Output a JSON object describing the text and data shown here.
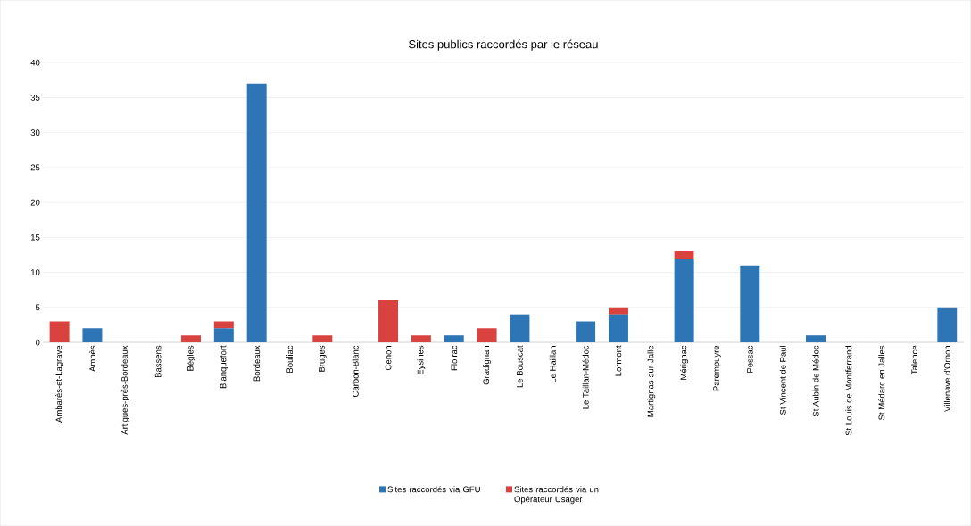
{
  "chart_data": {
    "type": "bar",
    "title": "Sites publics raccordés par le réseau",
    "categories": [
      "Ambarès-et-Lagrave",
      "Ambès",
      "Artigues-près-Bordeaux",
      "Bassens",
      "Bègles",
      "Blanquefort",
      "Bordeaux",
      "Bouliac",
      "Bruges",
      "Carbon-Blanc",
      "Cenon",
      "Eysines",
      "Floirac",
      "Gradignan",
      "Le Bouscat",
      "Le Haillan",
      "Le Taillan-Médoc",
      "Lormont",
      "Martignas-sur-Jalle",
      "Mérignac",
      "Parempuyre",
      "Pessac",
      "St Vincent de Paul",
      "St Aubin de Médoc",
      "St Louis de Montferrand",
      "St Médard en Jalles",
      "Talence",
      "Villenave d'Ornon"
    ],
    "series": [
      {
        "name": "Sites raccordés via GFU",
        "color": "#2e75b6",
        "values": [
          0,
          2,
          0,
          0,
          0,
          2,
          37,
          0,
          0,
          0,
          0,
          0,
          1,
          0,
          4,
          0,
          3,
          4,
          0,
          12,
          0,
          11,
          0,
          1,
          0,
          0,
          0,
          5
        ]
      },
      {
        "name": "Sites raccordés via un Opérateur Usager",
        "color": "#d9423f",
        "values": [
          3,
          0,
          0,
          0,
          1,
          1,
          0,
          0,
          1,
          0,
          6,
          1,
          0,
          2,
          0,
          0,
          0,
          1,
          0,
          1,
          0,
          0,
          0,
          0,
          0,
          0,
          0,
          0
        ]
      }
    ],
    "stacked": true,
    "ylim": [
      0,
      40
    ],
    "yticks": [
      0,
      5,
      10,
      15,
      20,
      25,
      30,
      35,
      40
    ],
    "grid": "y",
    "legend": "bottom"
  }
}
